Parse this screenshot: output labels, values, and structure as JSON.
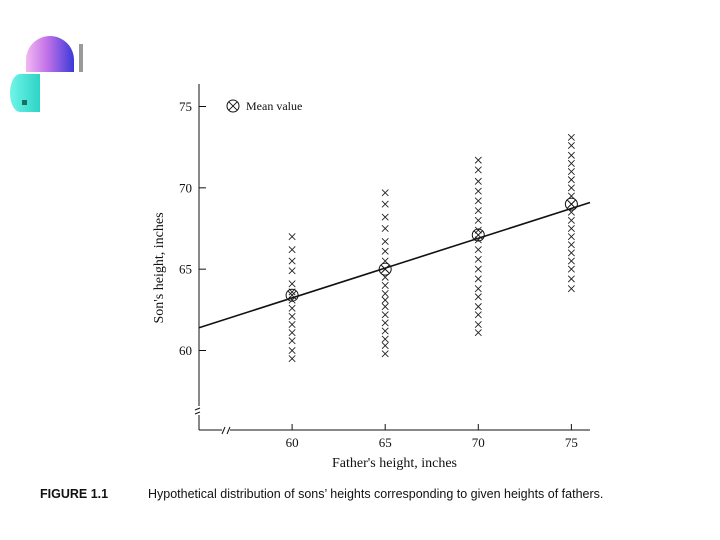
{
  "chart_data": {
    "type": "scatter",
    "title": "",
    "xlabel": "Father's height, inches",
    "ylabel": "Son's height, inches",
    "xlim": [
      55,
      76
    ],
    "ylim": [
      55,
      76
    ],
    "x_ticks": [
      60,
      65,
      70,
      75
    ],
    "y_ticks": [
      60,
      65,
      70,
      75
    ],
    "legend": {
      "label": "Mean value",
      "position": "top-left"
    },
    "grid": false,
    "axis_break": true,
    "series": [
      {
        "marker": "x",
        "points": [
          {
            "x": 60,
            "ys": [
              59.5,
              60.0,
              60.6,
              61.1,
              61.6,
              62.1,
              62.6,
              63.1,
              63.6,
              64.1,
              64.9,
              65.5,
              66.2,
              67.0
            ]
          },
          {
            "x": 65,
            "ys": [
              59.8,
              60.3,
              60.7,
              61.2,
              61.7,
              62.2,
              62.7,
              63.1,
              63.5,
              64.0,
              64.5,
              65.0,
              65.5,
              66.1,
              66.7,
              67.5,
              68.2,
              69.0,
              69.7
            ]
          },
          {
            "x": 70,
            "ys": [
              61.1,
              61.6,
              62.2,
              62.7,
              63.3,
              63.8,
              64.4,
              65.0,
              65.6,
              66.2,
              66.8,
              67.4,
              68.0,
              68.6,
              69.2,
              69.8,
              70.4,
              71.1,
              71.7
            ]
          },
          {
            "x": 75,
            "ys": [
              63.8,
              64.4,
              65.0,
              65.5,
              66.0,
              66.5,
              67.0,
              67.5,
              68.0,
              68.5,
              69.0,
              69.5,
              70.0,
              70.5,
              71.0,
              71.5,
              72.0,
              72.6,
              73.1
            ]
          }
        ]
      },
      {
        "name": "Mean value",
        "marker": "circled-x",
        "x": [
          60,
          65,
          70,
          75
        ],
        "y": [
          63.4,
          65.0,
          67.1,
          69.0
        ]
      }
    ],
    "regression_line": {
      "x": [
        55,
        76
      ],
      "y": [
        61.4,
        69.1
      ]
    }
  },
  "caption": {
    "label": "FIGURE 1.1",
    "text": "Hypothetical distribution of sons’ heights corresponding to given heights of fathers."
  }
}
